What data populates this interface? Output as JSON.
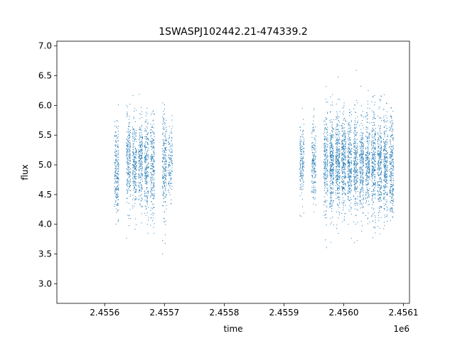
{
  "chart_data": {
    "type": "scatter",
    "title": "1SWASPJ102442.21-474339.2",
    "xlabel": "time",
    "ylabel": "flux",
    "x_offset_label": "1e6",
    "xlim": [
      2.45552,
      2.45611
    ],
    "ylim": [
      2.67,
      7.08
    ],
    "x_ticks": [
      2.4556,
      2.4557,
      2.4558,
      2.4559,
      2.456,
      2.4561
    ],
    "x_tick_labels": [
      "2.4556",
      "2.4557",
      "2.4558",
      "2.4559",
      "2.4560",
      "2.4561"
    ],
    "y_ticks": [
      3.0,
      3.5,
      4.0,
      4.5,
      5.0,
      5.5,
      6.0,
      6.5,
      7.0
    ],
    "y_tick_labels": [
      "3.0",
      "3.5",
      "4.0",
      "4.5",
      "5.0",
      "5.5",
      "6.0",
      "6.5",
      "7.0"
    ],
    "marker_color": "#1f77b4",
    "grid": false,
    "series": [
      {
        "clusters": [
          {
            "x_center": 2.45562,
            "x_spread": 3.5e-06,
            "y_center": 4.92,
            "y_spread": 0.38,
            "count": 220
          },
          {
            "x_center": 2.45564,
            "x_spread": 3.5e-06,
            "y_center": 5.02,
            "y_spread": 0.36,
            "count": 220
          },
          {
            "x_center": 2.45565,
            "x_spread": 3.5e-06,
            "y_center": 5.0,
            "y_spread": 0.38,
            "count": 220
          },
          {
            "x_center": 2.45566,
            "x_spread": 3.5e-06,
            "y_center": 5.05,
            "y_spread": 0.36,
            "count": 220
          },
          {
            "x_center": 2.45567,
            "x_spread": 3.5e-06,
            "y_center": 4.95,
            "y_spread": 0.42,
            "count": 220
          },
          {
            "x_center": 2.45568,
            "x_spread": 3.5e-06,
            "y_center": 4.95,
            "y_spread": 0.42,
            "count": 220
          },
          {
            "x_center": 2.4557,
            "x_spread": 3.5e-06,
            "y_center": 5.0,
            "y_spread": 0.45,
            "count": 220
          },
          {
            "x_center": 2.45571,
            "x_spread": 3.5e-06,
            "y_center": 5.05,
            "y_spread": 0.3,
            "count": 120
          },
          {
            "x_center": 2.45593,
            "x_spread": 3.5e-06,
            "y_center": 5.0,
            "y_spread": 0.35,
            "count": 160
          },
          {
            "x_center": 2.45595,
            "x_spread": 3.5e-06,
            "y_center": 5.0,
            "y_spread": 0.38,
            "count": 180
          },
          {
            "x_center": 2.45597,
            "x_spread": 3.5e-06,
            "y_center": 5.0,
            "y_spread": 0.42,
            "count": 220
          },
          {
            "x_center": 2.45598,
            "x_spread": 3.5e-06,
            "y_center": 5.05,
            "y_spread": 0.4,
            "count": 300
          },
          {
            "x_center": 2.45599,
            "x_spread": 3.5e-06,
            "y_center": 5.05,
            "y_spread": 0.4,
            "count": 300
          },
          {
            "x_center": 2.456,
            "x_spread": 3.5e-06,
            "y_center": 5.05,
            "y_spread": 0.4,
            "count": 300
          },
          {
            "x_center": 2.45601,
            "x_spread": 3.5e-06,
            "y_center": 5.0,
            "y_spread": 0.4,
            "count": 260
          },
          {
            "x_center": 2.45602,
            "x_spread": 3.5e-06,
            "y_center": 5.0,
            "y_spread": 0.42,
            "count": 260
          },
          {
            "x_center": 2.45603,
            "x_spread": 3.5e-06,
            "y_center": 5.0,
            "y_spread": 0.4,
            "count": 240
          },
          {
            "x_center": 2.45604,
            "x_spread": 3.5e-06,
            "y_center": 5.0,
            "y_spread": 0.42,
            "count": 240
          },
          {
            "x_center": 2.45605,
            "x_spread": 3.5e-06,
            "y_center": 5.0,
            "y_spread": 0.45,
            "count": 260
          },
          {
            "x_center": 2.45606,
            "x_spread": 3.5e-06,
            "y_center": 5.0,
            "y_spread": 0.42,
            "count": 260
          },
          {
            "x_center": 2.45607,
            "x_spread": 3.5e-06,
            "y_center": 5.0,
            "y_spread": 0.42,
            "count": 260
          },
          {
            "x_center": 2.45608,
            "x_spread": 3.5e-06,
            "y_center": 4.95,
            "y_spread": 0.45,
            "count": 240
          }
        ]
      }
    ]
  }
}
